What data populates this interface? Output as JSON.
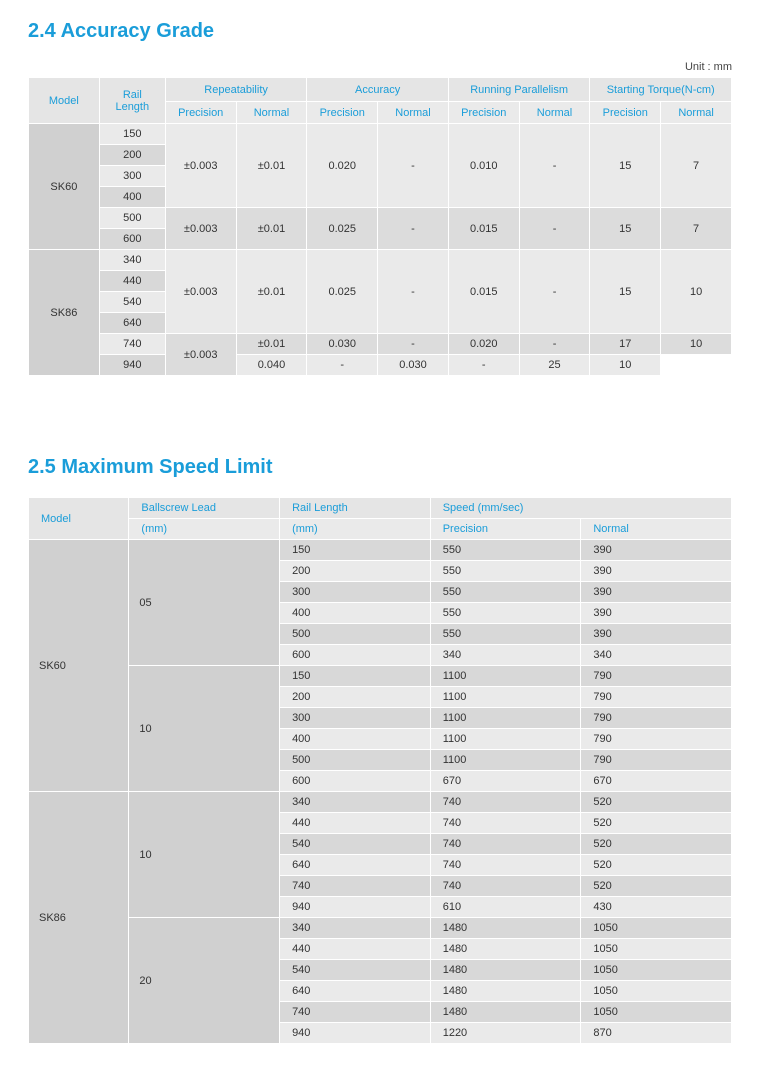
{
  "section1": {
    "title": "2.4   Accuracy Grade",
    "unit": "Unit : mm",
    "headers": {
      "model": "Model",
      "railLength": "Rail Length",
      "groups": [
        "Repeatability",
        "Accuracy",
        "Running Parallelism",
        "Starting Torque(N-cm)"
      ],
      "sub": [
        "Precision",
        "Normal"
      ]
    },
    "blocks": [
      {
        "model": "SK60",
        "groups": [
          {
            "rails": [
              "150",
              "200",
              "300",
              "400"
            ],
            "vals": [
              "±0.003",
              "±0.01",
              "0.020",
              "-",
              "0.010",
              "-",
              "15",
              "7"
            ]
          },
          {
            "rails": [
              "500",
              "600"
            ],
            "vals": [
              "±0.003",
              "±0.01",
              "0.025",
              "-",
              "0.015",
              "-",
              "15",
              "7"
            ]
          }
        ]
      },
      {
        "model": "SK86",
        "groups": [
          {
            "rails": [
              "340",
              "440",
              "540",
              "640"
            ],
            "vals": [
              "±0.003",
              "±0.01",
              "0.025",
              "-",
              "0.015",
              "-",
              "15",
              "10"
            ]
          },
          {
            "rails": [
              "740"
            ],
            "repeatability_span": 2,
            "vals": [
              "±0.003",
              "±0.01",
              "0.030",
              "-",
              "0.020",
              "-",
              "17",
              "10"
            ]
          },
          {
            "rails": [
              "940"
            ],
            "skip_repeat": true,
            "vals": [
              "±0.01",
              "0.040",
              "-",
              "0.030",
              "-",
              "25",
              "10"
            ]
          }
        ]
      }
    ]
  },
  "section2": {
    "title": "2.5   Maximum Speed Limit",
    "headers": {
      "model": "Model",
      "lead": "Ballscrew Lead",
      "leadUnit": "(mm)",
      "rail": "Rail Length",
      "railUnit": "(mm)",
      "speed": "Speed (mm/sec)",
      "sub": [
        "Precision",
        "Normal"
      ]
    },
    "blocks": [
      {
        "model": "SK60",
        "leads": [
          {
            "lead": "05",
            "rows": [
              [
                "150",
                "550",
                "390"
              ],
              [
                "200",
                "550",
                "390"
              ],
              [
                "300",
                "550",
                "390"
              ],
              [
                "400",
                "550",
                "390"
              ],
              [
                "500",
                "550",
                "390"
              ],
              [
                "600",
                "340",
                "340"
              ]
            ]
          },
          {
            "lead": "10",
            "rows": [
              [
                "150",
                "1100",
                "790"
              ],
              [
                "200",
                "1100",
                "790"
              ],
              [
                "300",
                "1100",
                "790"
              ],
              [
                "400",
                "1100",
                "790"
              ],
              [
                "500",
                "1100",
                "790"
              ],
              [
                "600",
                "670",
                "670"
              ]
            ]
          }
        ]
      },
      {
        "model": "SK86",
        "leads": [
          {
            "lead": "10",
            "rows": [
              [
                "340",
                "740",
                "520"
              ],
              [
                "440",
                "740",
                "520"
              ],
              [
                "540",
                "740",
                "520"
              ],
              [
                "640",
                "740",
                "520"
              ],
              [
                "740",
                "740",
                "520"
              ],
              [
                "940",
                "610",
                "430"
              ]
            ]
          },
          {
            "lead": "20",
            "rows": [
              [
                "340",
                "1480",
                "1050"
              ],
              [
                "440",
                "1480",
                "1050"
              ],
              [
                "540",
                "1480",
                "1050"
              ],
              [
                "640",
                "1480",
                "1050"
              ],
              [
                "740",
                "1480",
                "1050"
              ],
              [
                "940",
                "1220",
                "870"
              ]
            ]
          }
        ]
      }
    ]
  }
}
